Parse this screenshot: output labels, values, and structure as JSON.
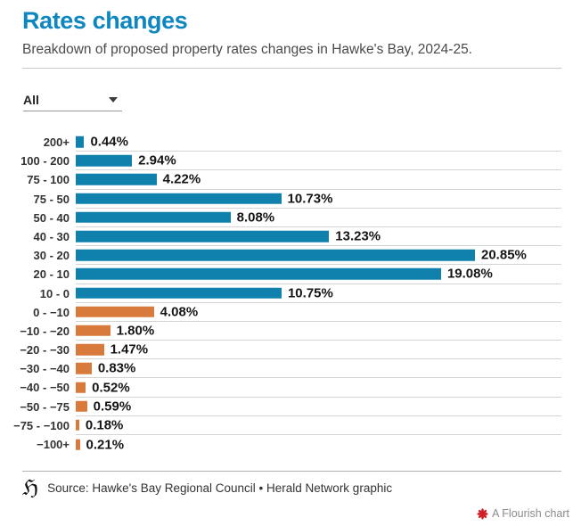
{
  "header": {
    "title": "Rates changes",
    "subtitle": "Breakdown of proposed property rates changes in Hawke's Bay, 2024-25.",
    "title_color": "#0e86c0"
  },
  "filter": {
    "selected_value": "All",
    "icon": "chevron-down-icon"
  },
  "chart_data": {
    "type": "bar",
    "orientation": "horizontal",
    "title": "Rates changes",
    "subtitle": "Breakdown of proposed property rates changes in Hawke's Bay, 2024-25.",
    "categories": [
      "200+",
      "100 - 200",
      "75 - 100",
      "75 - 50",
      "50 - 40",
      "40 - 30",
      "30 - 20",
      "20 - 10",
      "10 - 0",
      "0 - −10",
      "−10 - −20",
      "−20 - −30",
      "−30 - −40",
      "−40 - −50",
      "−50 - −75",
      "−75 - −100",
      "−100+"
    ],
    "values": [
      0.44,
      2.94,
      4.22,
      10.73,
      8.08,
      13.23,
      20.85,
      19.08,
      10.75,
      4.08,
      1.8,
      1.47,
      0.83,
      0.52,
      0.59,
      0.18,
      0.21
    ],
    "value_labels": [
      "0.44%",
      "2.94%",
      "4.22%",
      "10.73%",
      "8.08%",
      "13.23%",
      "20.85%",
      "19.08%",
      "10.75%",
      "4.08%",
      "1.80%",
      "1.47%",
      "0.83%",
      "0.52%",
      "0.59%",
      "0.18%",
      "0.21%"
    ],
    "groups": [
      "increase",
      "increase",
      "increase",
      "increase",
      "increase",
      "increase",
      "increase",
      "increase",
      "increase",
      "decrease",
      "decrease",
      "decrease",
      "decrease",
      "decrease",
      "decrease",
      "decrease",
      "decrease"
    ],
    "palette": {
      "increase": "#1080ad",
      "decrease": "#d87a3c"
    },
    "xlim": [
      0,
      21
    ],
    "xlabel": "",
    "ylabel": "",
    "legend": "none",
    "gridlines": "row-separators"
  },
  "footer": {
    "logo": "herald-h-logo",
    "logo_glyph": "ℌ",
    "source": "Source: Hawke's Bay Regional Council • Herald Network graphic",
    "flourish_credit": "A Flourish chart",
    "flourish_color": "#cf2027"
  }
}
